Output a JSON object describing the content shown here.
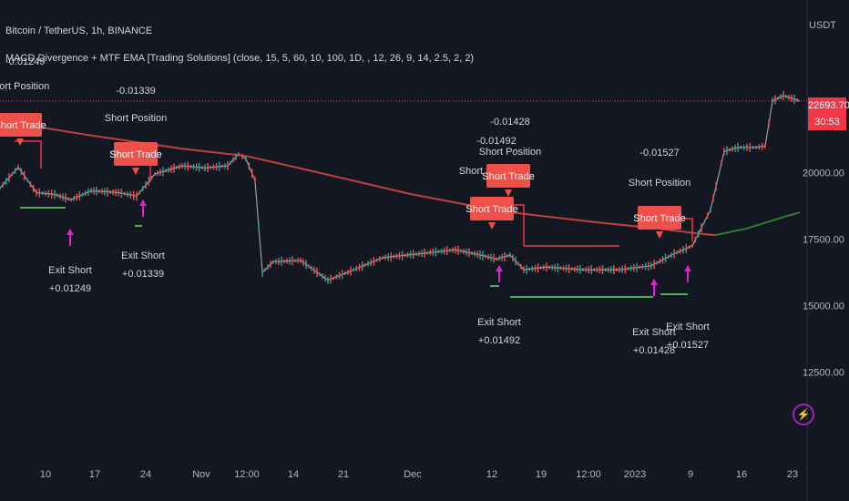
{
  "header": {
    "symbol": "Bitcoin / TetherUS, 1h, BINANCE",
    "indicator": "MACD Divergence + MTF EMA [Trading Solutions] (close, 15, 5, 60, 10, 100, 1D, , 12, 26, 9, 14, 2.5, 2, 2)",
    "indicator_value": "-0.01249"
  },
  "price_axis": {
    "unit": "USDT",
    "current_price": "22693.70",
    "countdown": "30:53"
  },
  "colors": {
    "background": "#131722",
    "ema_red": "#c2413f",
    "ema_green": "#2e7d32",
    "trade_box": "#f0504a",
    "exit_magenta": "#e020d8",
    "up": "#26a69a",
    "down": "#ef5350"
  },
  "bolt_icon": "lightning-icon",
  "chart_data": {
    "type": "line",
    "title": "Bitcoin / TetherUS, 1h, BINANCE",
    "x_ticks": [
      "10",
      "17",
      "24",
      "Nov",
      "12:00",
      "14",
      "21",
      "Dec",
      "12",
      "19",
      "12:00",
      "2023",
      "9",
      "16",
      "23"
    ],
    "y_ticks": [
      "20000.00",
      "17500.00",
      "15000.00",
      "12500.00"
    ],
    "ylim": [
      11300,
      24500
    ],
    "current_price": 22693.7,
    "series": [
      {
        "name": "",
        "color": "#9e9e9e",
        "x": [
          0,
          20,
          40,
          60,
          78,
          100,
          130,
          150,
          170,
          200,
          225,
          250,
          262,
          270,
          280,
          288,
          300,
          330,
          360,
          385,
          420,
          460,
          500,
          530,
          545,
          560,
          575,
          600,
          640,
          680,
          715,
          740,
          760,
          780,
          795,
          810,
          830,
          840,
          848,
          860,
          878
        ],
        "y": [
          19420,
          20200,
          19250,
          19180,
          18980,
          19320,
          19250,
          19120,
          19950,
          20260,
          20180,
          20260,
          20700,
          20520,
          19700,
          16250,
          16650,
          16700,
          15950,
          16300,
          16800,
          16950,
          17100,
          16880,
          16750,
          16900,
          16350,
          16450,
          16350,
          16350,
          16500,
          16950,
          17250,
          18600,
          20800,
          20950,
          20950,
          21000,
          22700,
          22900,
          22700
        ]
      },
      {
        "name": "",
        "color": "#c2413f",
        "x": [
          0,
          100,
          200,
          270,
          350,
          450,
          550,
          650,
          720,
          770,
          785
        ],
        "y": [
          21950,
          21400,
          20900,
          20630,
          20000,
          19200,
          18550,
          18150,
          17900,
          17700,
          17650
        ]
      },
      {
        "name": "",
        "color": "#2e7d32",
        "x": [
          785,
          820,
          860,
          878
        ],
        "y": [
          17650,
          17900,
          18330,
          18500
        ]
      }
    ],
    "trades": [
      {
        "entry": "Short Trade",
        "label": "Short Position",
        "value": "",
        "exit": "Exit Short",
        "exit_value": "+0.01249"
      },
      {
        "entry": "Short Trade",
        "label": "Short Position",
        "value": "-0.01339",
        "exit": "Exit Short",
        "exit_value": "+0.01339"
      },
      {
        "entry": "Short Trade",
        "label": "Short Position",
        "value": "-0.01492",
        "exit": "Exit Short",
        "exit_value": "+0.01492"
      },
      {
        "entry": "Short Trade",
        "label": "Short Position",
        "value": "-0.01428",
        "exit": "Exit Short",
        "exit_value": "+0.01428"
      },
      {
        "entry": "Short Trade",
        "label": "Short Position",
        "value": "-0.01527",
        "exit": "Exit Short",
        "exit_value": "+0.01527"
      }
    ]
  }
}
